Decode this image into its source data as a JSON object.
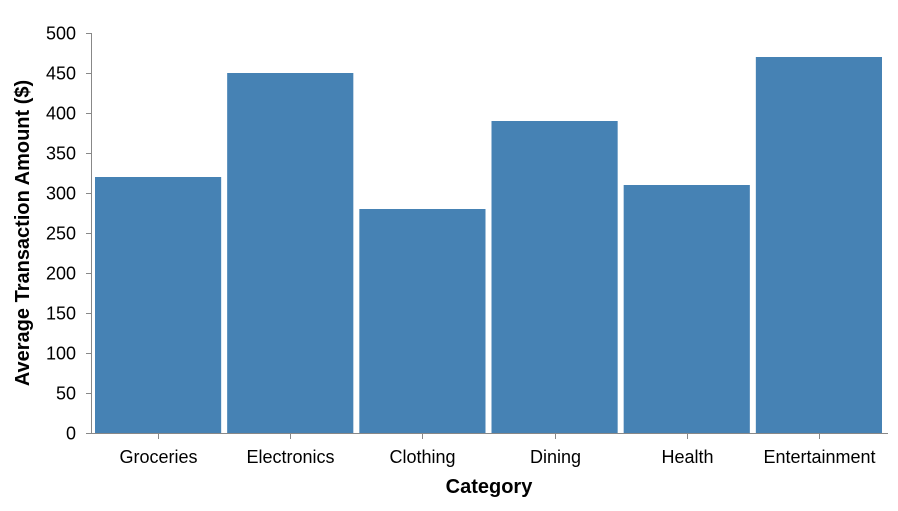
{
  "colors": {
    "bar": "#4682b4",
    "axis": "#888888",
    "text": "#000000"
  },
  "chart_data": {
    "type": "bar",
    "title": "",
    "xlabel": "Category",
    "ylabel": "Average Transaction Amount ($)",
    "categories": [
      "Groceries",
      "Electronics",
      "Clothing",
      "Dining",
      "Health",
      "Entertainment"
    ],
    "values": [
      320,
      450,
      280,
      390,
      310,
      470
    ],
    "ylim": [
      0,
      500
    ],
    "yticks": [
      0,
      50,
      100,
      150,
      200,
      250,
      300,
      350,
      400,
      450,
      500
    ],
    "grid": false,
    "legend": "none"
  }
}
